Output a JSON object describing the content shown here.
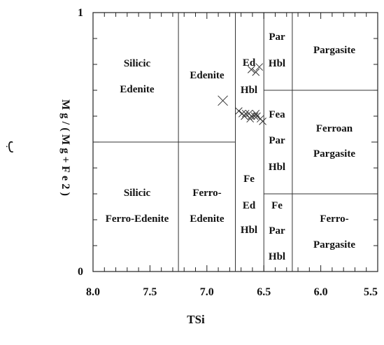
{
  "page": {
    "side_mark": "ب"
  },
  "chart_data": {
    "type": "scatter",
    "title": "",
    "xlabel": "TSi",
    "ylabel": "Mg/(Mg+Fe2)",
    "xlim": [
      8.0,
      5.5
    ],
    "ylim": [
      0,
      1
    ],
    "x_ticks": [
      8.0,
      7.5,
      7.0,
      6.5,
      6.0,
      5.5
    ],
    "x_tick_labels": [
      "8.0",
      "7.5",
      "7.0",
      "6.5",
      "6.0",
      "5.5"
    ],
    "y_ticks": [
      0,
      1
    ],
    "y_tick_labels": [
      "0",
      "1"
    ],
    "grid": false,
    "legend": "none",
    "marker": "x",
    "field_boundaries": {
      "vertical": [
        7.25,
        6.75,
        6.5,
        6.25
      ],
      "horizontal": [
        {
          "y": 0.5,
          "x_from": 8.0,
          "x_to": 6.75
        },
        {
          "y": 0.7,
          "x_from": 6.5,
          "x_to": 5.5
        },
        {
          "y": 0.3,
          "x_from": 6.5,
          "x_to": 5.5
        }
      ]
    },
    "fields": [
      {
        "lines": [
          "Silicic",
          "Edenite"
        ]
      },
      {
        "lines": [
          "Edenite"
        ]
      },
      {
        "lines": [
          "Ed",
          "Hbl"
        ]
      },
      {
        "lines": [
          "Par",
          "Hbl"
        ]
      },
      {
        "lines": [
          "Pargasite"
        ]
      },
      {
        "lines": [
          "Fea",
          "Par",
          "Hbl"
        ]
      },
      {
        "lines": [
          "Ferroan",
          "Pargasite"
        ]
      },
      {
        "lines": [
          "Silicic",
          "Ferro-Edenite"
        ]
      },
      {
        "lines": [
          "Ferro-",
          "Edenite"
        ]
      },
      {
        "lines": [
          "Fe",
          "Ed",
          "Hbl"
        ]
      },
      {
        "lines": [
          "Fe",
          "Par",
          "Hbl"
        ]
      },
      {
        "lines": [
          "Ferro-",
          "Pargasite"
        ]
      }
    ],
    "points": [
      {
        "x": 6.86,
        "y": 0.66
      },
      {
        "x": 6.61,
        "y": 0.78
      },
      {
        "x": 6.54,
        "y": 0.79
      },
      {
        "x": 6.57,
        "y": 0.77
      },
      {
        "x": 6.72,
        "y": 0.62
      },
      {
        "x": 6.69,
        "y": 0.61
      },
      {
        "x": 6.66,
        "y": 0.61
      },
      {
        "x": 6.67,
        "y": 0.6
      },
      {
        "x": 6.63,
        "y": 0.61
      },
      {
        "x": 6.61,
        "y": 0.6
      },
      {
        "x": 6.62,
        "y": 0.59
      },
      {
        "x": 6.58,
        "y": 0.6
      },
      {
        "x": 6.57,
        "y": 0.61
      },
      {
        "x": 6.56,
        "y": 0.6
      },
      {
        "x": 6.53,
        "y": 0.59
      },
      {
        "x": 6.51,
        "y": 0.58
      }
    ]
  }
}
